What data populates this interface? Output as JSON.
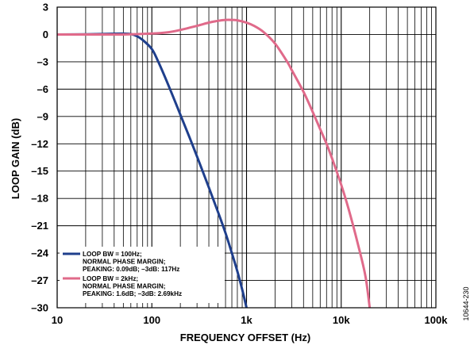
{
  "chart_data": {
    "type": "line",
    "xlabel": "FREQUENCY OFFSET (Hz)",
    "ylabel": "LOOP GAIN (dB)",
    "x_scale": "log",
    "xlim": [
      10,
      100000
    ],
    "ylim": [
      -30,
      3
    ],
    "x_ticks": [
      10,
      100,
      1000,
      10000,
      100000
    ],
    "x_tick_labels": [
      "10",
      "100",
      "1k",
      "10k",
      "100k"
    ],
    "y_ticks": [
      3,
      0,
      -3,
      -6,
      -9,
      -12,
      -15,
      -18,
      -21,
      -24,
      -27,
      -30
    ],
    "y_tick_labels": [
      "3",
      "0",
      "–3",
      "–6",
      "–9",
      "–12",
      "–15",
      "–18",
      "–21",
      "–24",
      "–27",
      "–30"
    ],
    "grid": true,
    "legend_position": "bottom-left",
    "series": [
      {
        "name": "LOOP BW = 100Hz; NORMAL PHASE MARGIN; PEAKING: 0.09dB; –3dB: 117Hz",
        "color": "#1f3f8c",
        "legend_lines": [
          "LOOP BW = 100Hz;",
          "NORMAL PHASE MARGIN;",
          "PEAKING: 0.09dB; –3dB: 117Hz"
        ],
        "x": [
          10,
          20,
          30,
          40,
          50,
          60,
          70,
          80,
          100,
          117,
          150,
          200,
          250,
          300,
          400,
          500,
          600,
          700,
          800,
          900,
          1000
        ],
        "y": [
          0,
          0.02,
          0.05,
          0.08,
          0.09,
          0.05,
          -0.2,
          -0.6,
          -1.6,
          -3,
          -5.6,
          -8.8,
          -11.3,
          -13.4,
          -16.8,
          -19.5,
          -21.8,
          -24,
          -26,
          -28,
          -30
        ]
      },
      {
        "name": "LOOP BW = 2kHz; NORMAL PHASE MARGIN; PEAKING: 1.6dB; –3dB: 2.69kHz",
        "color": "#e06a8a",
        "legend_lines": [
          "LOOP BW = 2kHz;",
          "NORMAL PHASE MARGIN;",
          "PEAKING: 1.6dB; –3dB: 2.69kHz"
        ],
        "x": [
          10,
          20,
          50,
          100,
          150,
          200,
          300,
          400,
          500,
          600,
          700,
          800,
          1000,
          1200,
          1500,
          2000,
          2690,
          3000,
          4000,
          5000,
          6000,
          7000,
          8000,
          10000,
          12000,
          15000,
          18000,
          20000
        ],
        "y": [
          0,
          0,
          0,
          0.1,
          0.25,
          0.5,
          0.95,
          1.3,
          1.5,
          1.6,
          1.6,
          1.55,
          1.3,
          0.95,
          0.3,
          -1,
          -3,
          -3.9,
          -6.3,
          -8.5,
          -10.4,
          -12,
          -13.6,
          -16.5,
          -19.2,
          -23,
          -26.5,
          -30
        ]
      }
    ]
  },
  "figure_id": "10644-230"
}
